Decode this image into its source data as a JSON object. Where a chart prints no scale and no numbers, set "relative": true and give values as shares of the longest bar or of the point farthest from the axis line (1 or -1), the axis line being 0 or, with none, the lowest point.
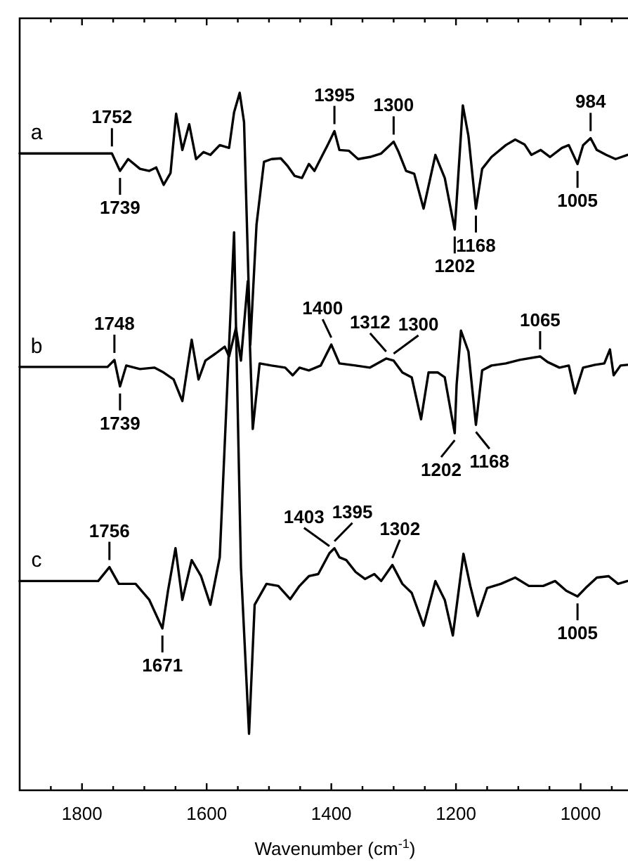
{
  "chart_data": {
    "type": "line",
    "relative": true,
    "xlabel": "Wavenumber (cm$^{-1}$)",
    "xlim": [
      1900,
      924
    ],
    "xticks": [
      {
        "value": 1850,
        "label": null
      },
      1800,
      {
        "value": 1750,
        "label": null
      },
      {
        "value": 1700,
        "label": null
      },
      {
        "value": 1650,
        "label": null
      },
      1600,
      {
        "value": 1550,
        "label": null
      },
      {
        "value": 1500,
        "label": null
      },
      {
        "value": 1450,
        "label": null
      },
      1400,
      {
        "value": 1350,
        "label": null
      },
      {
        "value": 1300,
        "label": null
      },
      {
        "value": 1250,
        "label": null
      },
      1200,
      {
        "value": 1150,
        "label": null
      },
      {
        "value": 1100,
        "label": null
      },
      {
        "value": 1050,
        "label": null
      },
      1000,
      {
        "value": 950,
        "label": null
      }
    ],
    "tick_labels": "x",
    "grid": false,
    "legend": false,
    "marker": "none",
    "line_style": "solid",
    "series": [
      {
        "name": "a",
        "color": "#000000",
        "x": [
          1900,
          1752,
          1739,
          1726,
          1707,
          1692,
          1681,
          1669,
          1658,
          1649,
          1639,
          1628,
          1617,
          1605,
          1594,
          1579,
          1564,
          1556,
          1547,
          1540,
          1530,
          1520,
          1508,
          1496,
          1481,
          1470,
          1459,
          1447,
          1436,
          1427,
          1414,
          1406,
          1395,
          1387,
          1372,
          1357,
          1338,
          1320,
          1300,
          1292,
          1280,
          1267,
          1252,
          1233,
          1218,
          1202,
          1199,
          1189,
          1180,
          1168,
          1158,
          1143,
          1120,
          1105,
          1090,
          1079,
          1064,
          1049,
          1030,
          1019,
          1005,
          996,
          984,
          974,
          959,
          944,
          925
        ],
        "values": [
          0.913,
          0.913,
          0.888,
          0.905,
          0.891,
          0.888,
          0.893,
          0.868,
          0.885,
          0.97,
          0.918,
          0.955,
          0.905,
          0.915,
          0.911,
          0.925,
          0.921,
          0.972,
          1.0,
          0.958,
          0.639,
          0.811,
          0.901,
          0.905,
          0.906,
          0.895,
          0.881,
          0.878,
          0.898,
          0.888,
          0.911,
          0.925,
          0.945,
          0.918,
          0.917,
          0.905,
          0.908,
          0.913,
          0.93,
          0.915,
          0.888,
          0.884,
          0.834,
          0.911,
          0.878,
          0.804,
          0.844,
          0.982,
          0.938,
          0.834,
          0.891,
          0.908,
          0.925,
          0.933,
          0.926,
          0.911,
          0.918,
          0.908,
          0.921,
          0.925,
          0.898,
          0.925,
          0.935,
          0.918,
          0.911,
          0.905,
          0.911
        ]
      },
      {
        "name": "b",
        "color": "#000000",
        "x": [
          1900,
          1759,
          1748,
          1739,
          1729,
          1707,
          1684,
          1669,
          1653,
          1639,
          1624,
          1613,
          1602,
          1586,
          1571,
          1564,
          1553,
          1545,
          1534,
          1526,
          1515,
          1496,
          1474,
          1462,
          1451,
          1436,
          1417,
          1400,
          1387,
          1361,
          1338,
          1312,
          1300,
          1286,
          1271,
          1256,
          1244,
          1229,
          1218,
          1202,
          1199,
          1192,
          1180,
          1168,
          1158,
          1143,
          1120,
          1098,
          1065,
          1053,
          1034,
          1019,
          1009,
          996,
          977,
          962,
          953,
          947,
          936,
          925
        ],
        "values": [
          0.607,
          0.607,
          0.617,
          0.579,
          0.609,
          0.604,
          0.606,
          0.599,
          0.589,
          0.558,
          0.646,
          0.589,
          0.616,
          0.626,
          0.636,
          0.622,
          0.663,
          0.616,
          0.73,
          0.518,
          0.612,
          0.609,
          0.606,
          0.595,
          0.606,
          0.602,
          0.609,
          0.639,
          0.612,
          0.609,
          0.606,
          0.619,
          0.616,
          0.599,
          0.592,
          0.532,
          0.599,
          0.599,
          0.592,
          0.512,
          0.581,
          0.659,
          0.629,
          0.524,
          0.602,
          0.609,
          0.612,
          0.617,
          0.622,
          0.614,
          0.606,
          0.609,
          0.569,
          0.606,
          0.61,
          0.612,
          0.632,
          0.595,
          0.609,
          0.61
        ]
      },
      {
        "name": "c",
        "color": "#000000",
        "x": [
          1900,
          1774,
          1756,
          1741,
          1714,
          1692,
          1671,
          1662,
          1650,
          1639,
          1624,
          1609,
          1594,
          1579,
          1556,
          1545,
          1532,
          1523,
          1504,
          1485,
          1466,
          1451,
          1436,
          1421,
          1403,
          1395,
          1387,
          1376,
          1361,
          1346,
          1331,
          1320,
          1302,
          1286,
          1271,
          1252,
          1233,
          1218,
          1205,
          1188,
          1177,
          1165,
          1150,
          1128,
          1105,
          1083,
          1060,
          1041,
          1023,
          1005,
          992,
          974,
          955,
          940,
          925
        ],
        "values": [
          0.3,
          0.3,
          0.32,
          0.296,
          0.296,
          0.273,
          0.232,
          0.286,
          0.347,
          0.273,
          0.33,
          0.307,
          0.266,
          0.334,
          0.8,
          0.32,
          0.081,
          0.266,
          0.296,
          0.293,
          0.274,
          0.293,
          0.307,
          0.31,
          0.34,
          0.347,
          0.334,
          0.33,
          0.313,
          0.303,
          0.31,
          0.3,
          0.323,
          0.296,
          0.283,
          0.236,
          0.3,
          0.273,
          0.222,
          0.339,
          0.293,
          0.25,
          0.29,
          0.296,
          0.305,
          0.293,
          0.293,
          0.3,
          0.286,
          0.278,
          0.29,
          0.305,
          0.307,
          0.296,
          0.3
        ]
      }
    ],
    "annotations": [
      {
        "text": "1752",
        "x": 1752,
        "y": 0.913
      },
      {
        "text": "1739",
        "x": 1739,
        "y": 0.888
      },
      {
        "text": "1395",
        "x": 1395,
        "y": 0.945
      },
      {
        "text": "1300",
        "x": 1300,
        "y": 0.93
      },
      {
        "text": "984",
        "x": 984,
        "y": 0.935
      },
      {
        "text": "1005",
        "x": 1005,
        "y": 0.898
      },
      {
        "text": "1202",
        "x": 1202,
        "y": 0.804
      },
      {
        "text": "1168",
        "x": 1168,
        "y": 0.834
      },
      {
        "text": "1748",
        "x": 1748,
        "y": 0.617
      },
      {
        "text": "1739",
        "x": 1739,
        "y": 0.579
      },
      {
        "text": "1400",
        "x": 1400,
        "y": 0.639
      },
      {
        "text": "1312",
        "x": 1312,
        "y": 0.619
      },
      {
        "text": "1300",
        "x": 1300,
        "y": 0.616
      },
      {
        "text": "1065",
        "x": 1065,
        "y": 0.622
      },
      {
        "text": "1202",
        "x": 1202,
        "y": 0.512
      },
      {
        "text": "1168",
        "x": 1168,
        "y": 0.524
      },
      {
        "text": "1756",
        "x": 1756,
        "y": 0.32
      },
      {
        "text": "1671",
        "x": 1671,
        "y": 0.232
      },
      {
        "text": "1403",
        "x": 1403,
        "y": 0.34
      },
      {
        "text": "1395",
        "x": 1395,
        "y": 0.347
      },
      {
        "text": "1302",
        "x": 1302,
        "y": 0.323
      },
      {
        "text": "1005",
        "x": 1005,
        "y": 0.278
      }
    ]
  }
}
